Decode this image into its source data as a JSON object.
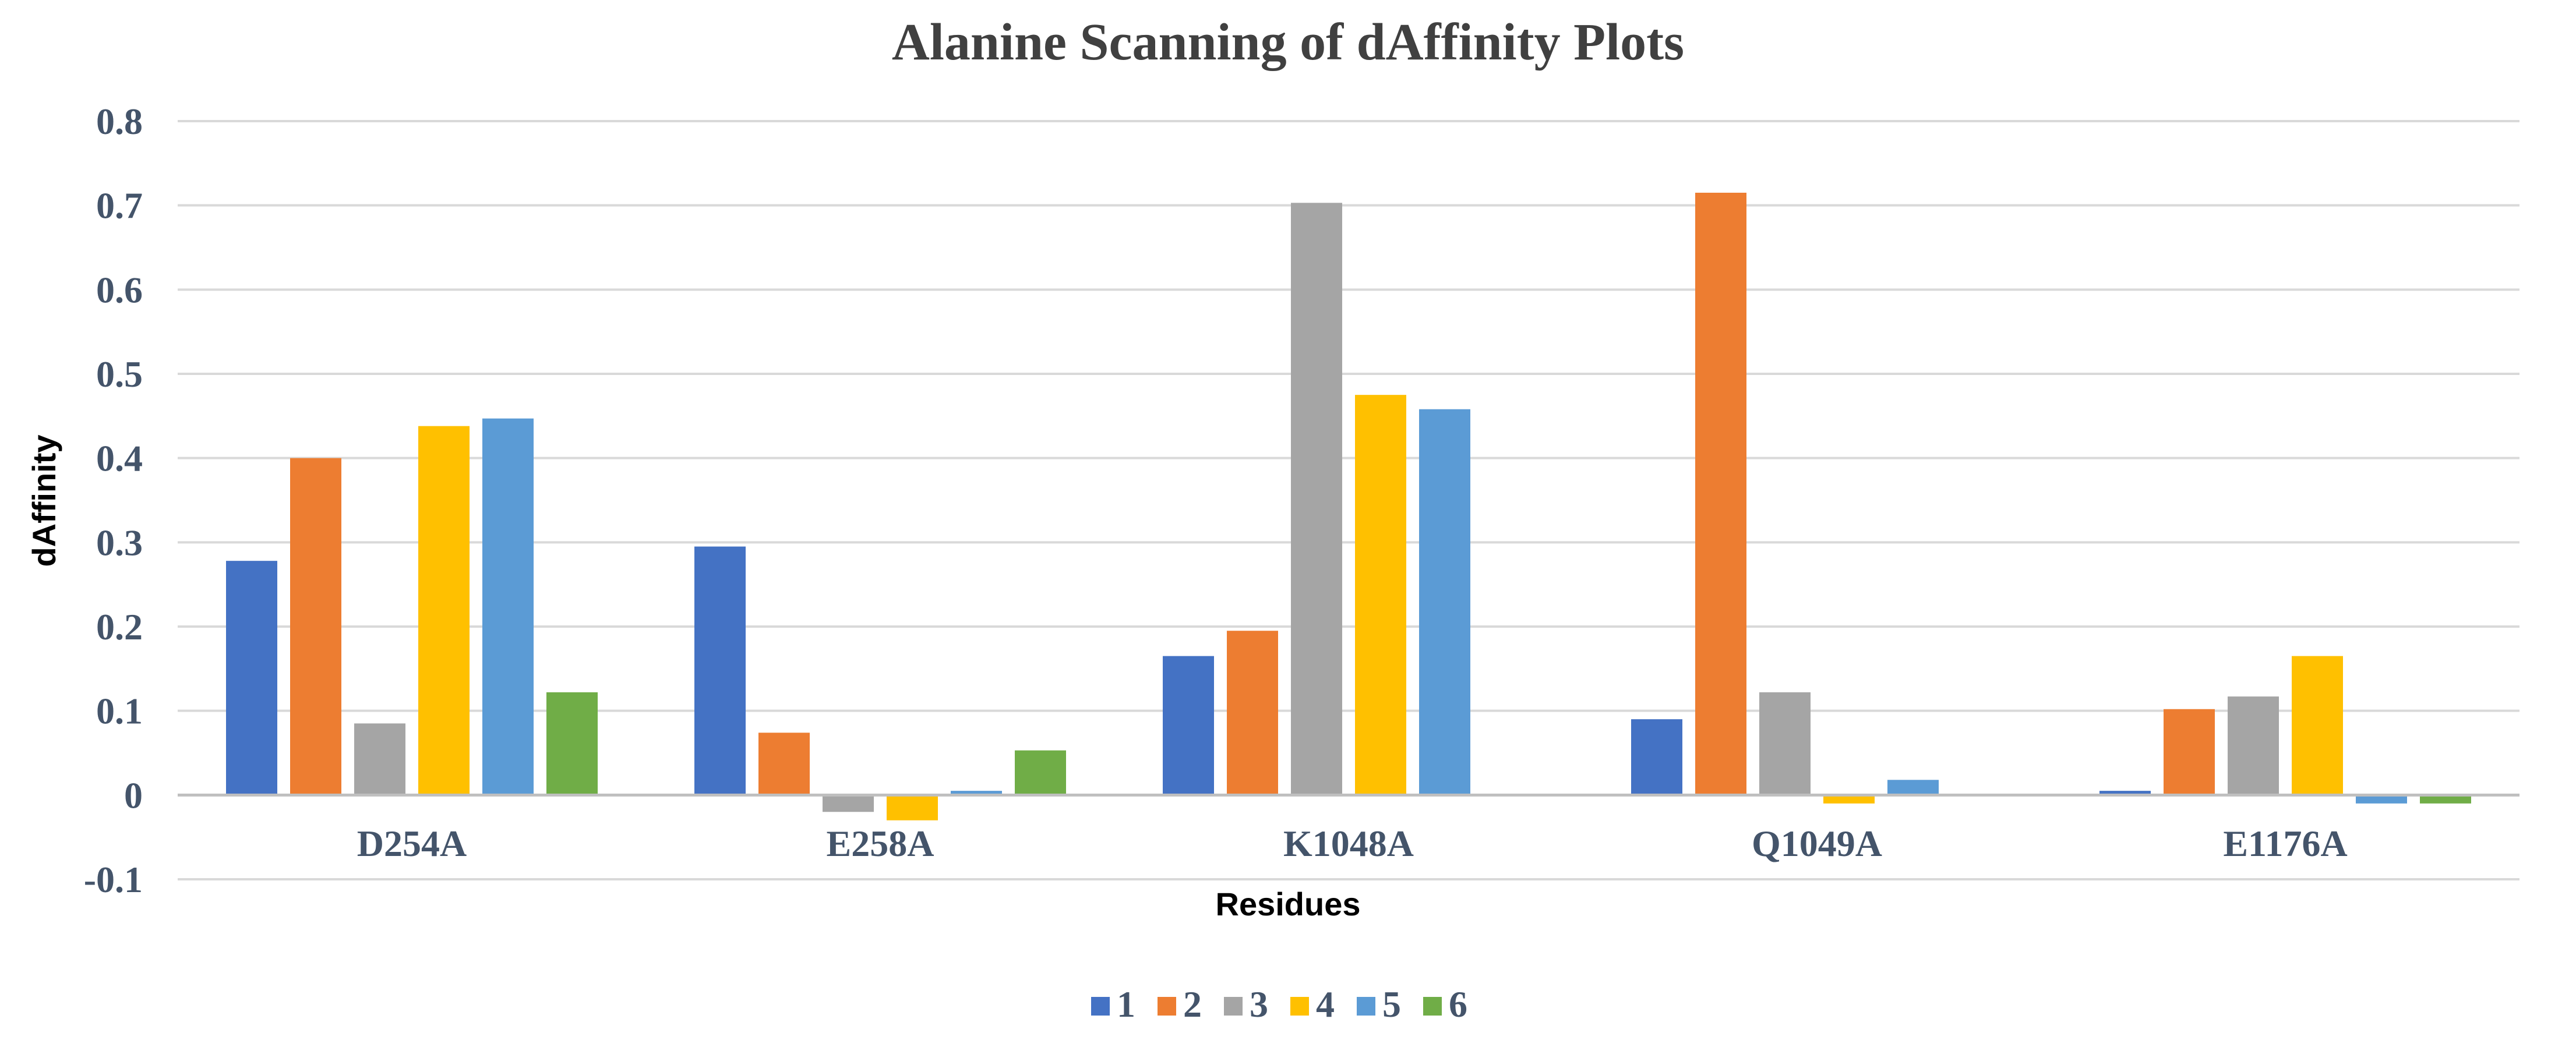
{
  "chart_data": {
    "type": "bar",
    "title": "Alanine Scanning of dAffinity Plots",
    "xlabel": "Residues",
    "ylabel": "dAffinity",
    "ylim": [
      -0.1,
      0.8
    ],
    "yticks": [
      "0.8",
      "0.7",
      "0.6",
      "0.5",
      "0.4",
      "0.3",
      "0.2",
      "0.1",
      "0",
      "-0.1"
    ],
    "categories": [
      "D254A",
      "E258A",
      "K1048A",
      "Q1049A",
      "E1176A"
    ],
    "series": [
      {
        "name": "1",
        "color": "#4472c4",
        "values": [
          0.278,
          0.295,
          0.165,
          0.09,
          0.005
        ]
      },
      {
        "name": "2",
        "color": "#ed7d31",
        "values": [
          0.4,
          0.074,
          0.195,
          0.715,
          0.102
        ]
      },
      {
        "name": "3",
        "color": "#a5a5a5",
        "values": [
          0.085,
          -0.02,
          0.703,
          0.122,
          0.117
        ]
      },
      {
        "name": "4",
        "color": "#ffc000",
        "values": [
          0.438,
          -0.03,
          0.475,
          -0.01,
          0.165
        ]
      },
      {
        "name": "5",
        "color": "#5b9bd5",
        "values": [
          0.447,
          0.005,
          0.458,
          0.018,
          -0.01
        ]
      },
      {
        "name": "6",
        "color": "#70ad47",
        "values": [
          0.122,
          0.053,
          0.0,
          0.0,
          -0.01
        ]
      }
    ],
    "grid": true,
    "legend_position": "bottom"
  }
}
